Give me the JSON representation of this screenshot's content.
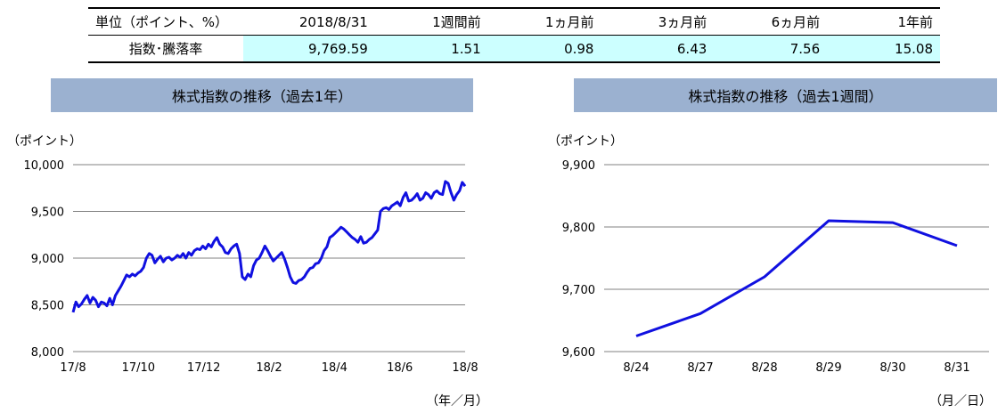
{
  "summary": {
    "header": [
      "単位（ポイント、%）",
      "2018/8/31",
      "1週間前",
      "1ヵ月前",
      "3ヵ月前",
      "6ヵ月前",
      "1年前"
    ],
    "row_label": "指数･騰落率",
    "values": [
      "9,769.59",
      "1.51",
      "0.98",
      "6.43",
      "7.56",
      "15.08"
    ]
  },
  "chart_data": [
    {
      "type": "line",
      "title": "株式指数の推移（過去1年）",
      "ylabel": "（ポイント）",
      "xlabel": "（年／月）",
      "ylim": [
        8000,
        10000
      ],
      "yticks": [
        "10,000",
        "9,500",
        "9,000",
        "8,500",
        "8,000"
      ],
      "ytick_values": [
        10000,
        9500,
        9000,
        8500,
        8000
      ],
      "xticks": [
        "17/8",
        "17/10",
        "17/12",
        "18/2",
        "18/4",
        "18/6",
        "18/8"
      ],
      "series": [
        {
          "color": "#1010e0",
          "values": [
            8420,
            8530,
            8480,
            8510,
            8560,
            8600,
            8520,
            8580,
            8550,
            8480,
            8530,
            8520,
            8490,
            8570,
            8500,
            8600,
            8650,
            8700,
            8760,
            8820,
            8800,
            8830,
            8810,
            8840,
            8860,
            8900,
            9000,
            9050,
            9030,
            8950,
            8990,
            9020,
            8960,
            9000,
            9010,
            8980,
            9000,
            9030,
            9010,
            9050,
            9000,
            9060,
            9030,
            9080,
            9100,
            9090,
            9130,
            9100,
            9150,
            9120,
            9180,
            9220,
            9150,
            9120,
            9060,
            9050,
            9100,
            9130,
            9150,
            9050,
            8800,
            8770,
            8830,
            8800,
            8920,
            8980,
            9000,
            9060,
            9130,
            9080,
            9020,
            8970,
            9000,
            9030,
            9060,
            8990,
            8900,
            8800,
            8740,
            8730,
            8760,
            8770,
            8800,
            8850,
            8890,
            8900,
            8940,
            8950,
            9000,
            9080,
            9120,
            9220,
            9240,
            9270,
            9300,
            9330,
            9310,
            9280,
            9250,
            9220,
            9200,
            9170,
            9230,
            9160,
            9170,
            9200,
            9220,
            9260,
            9300,
            9500,
            9530,
            9540,
            9520,
            9560,
            9580,
            9600,
            9560,
            9650,
            9700,
            9610,
            9620,
            9650,
            9690,
            9620,
            9640,
            9700,
            9680,
            9640,
            9700,
            9720,
            9690,
            9680,
            9820,
            9800,
            9700,
            9620,
            9680,
            9720,
            9810,
            9770
          ]
        }
      ]
    },
    {
      "type": "line",
      "title": "株式指数の推移（過去1週間）",
      "ylabel": "（ポイント）",
      "xlabel": "（月／日）",
      "ylim": [
        9600,
        9900
      ],
      "yticks": [
        "9,900",
        "9,800",
        "9,700",
        "9,600"
      ],
      "ytick_values": [
        9900,
        9800,
        9700,
        9600
      ],
      "categories": [
        "8/24",
        "8/27",
        "8/28",
        "8/29",
        "8/30",
        "8/31"
      ],
      "series": [
        {
          "color": "#1010e0",
          "values": [
            9625,
            9661,
            9720,
            9810,
            9807,
            9770
          ]
        }
      ]
    }
  ]
}
